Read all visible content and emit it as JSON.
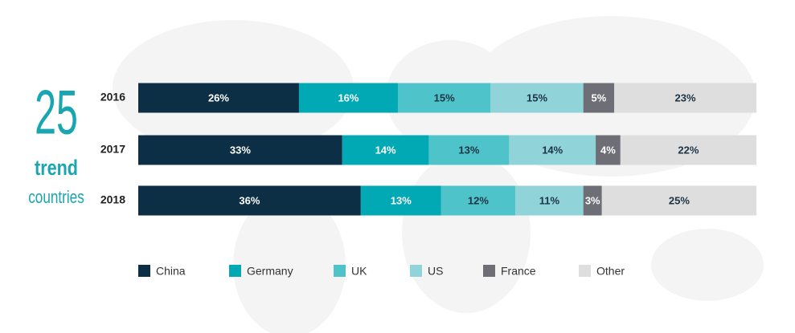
{
  "chart_data": {
    "type": "bar",
    "orientation": "horizontal",
    "stacked": true,
    "annotations": [
      "25",
      "trend",
      "countries"
    ],
    "categories": [
      "2016",
      "2017",
      "2018"
    ],
    "series": [
      {
        "name": "China",
        "color": "#0d2f45",
        "values": [
          26,
          33,
          36
        ],
        "value_labels": [
          "26%",
          "33%",
          "36%"
        ]
      },
      {
        "name": "Germany",
        "color": "#00a9b4",
        "values": [
          16,
          14,
          13
        ],
        "value_labels": [
          "16%",
          "14%",
          "13%"
        ]
      },
      {
        "name": "UK",
        "color": "#4ec3c9",
        "values": [
          15,
          13,
          12
        ],
        "value_labels": [
          "15%",
          "13%",
          "12%"
        ]
      },
      {
        "name": "US",
        "color": "#90d4d9",
        "values": [
          15,
          14,
          11
        ],
        "value_labels": [
          "15%",
          "14%",
          "11%"
        ]
      },
      {
        "name": "France",
        "color": "#6d6e76",
        "values": [
          5,
          4,
          3
        ],
        "value_labels": [
          "5%",
          "4%",
          "3%"
        ]
      },
      {
        "name": "Other",
        "color": "#dedede",
        "values": [
          23,
          22,
          25
        ],
        "value_labels": [
          "23%",
          "22%",
          "25%"
        ]
      }
    ],
    "legend": "bottom"
  }
}
